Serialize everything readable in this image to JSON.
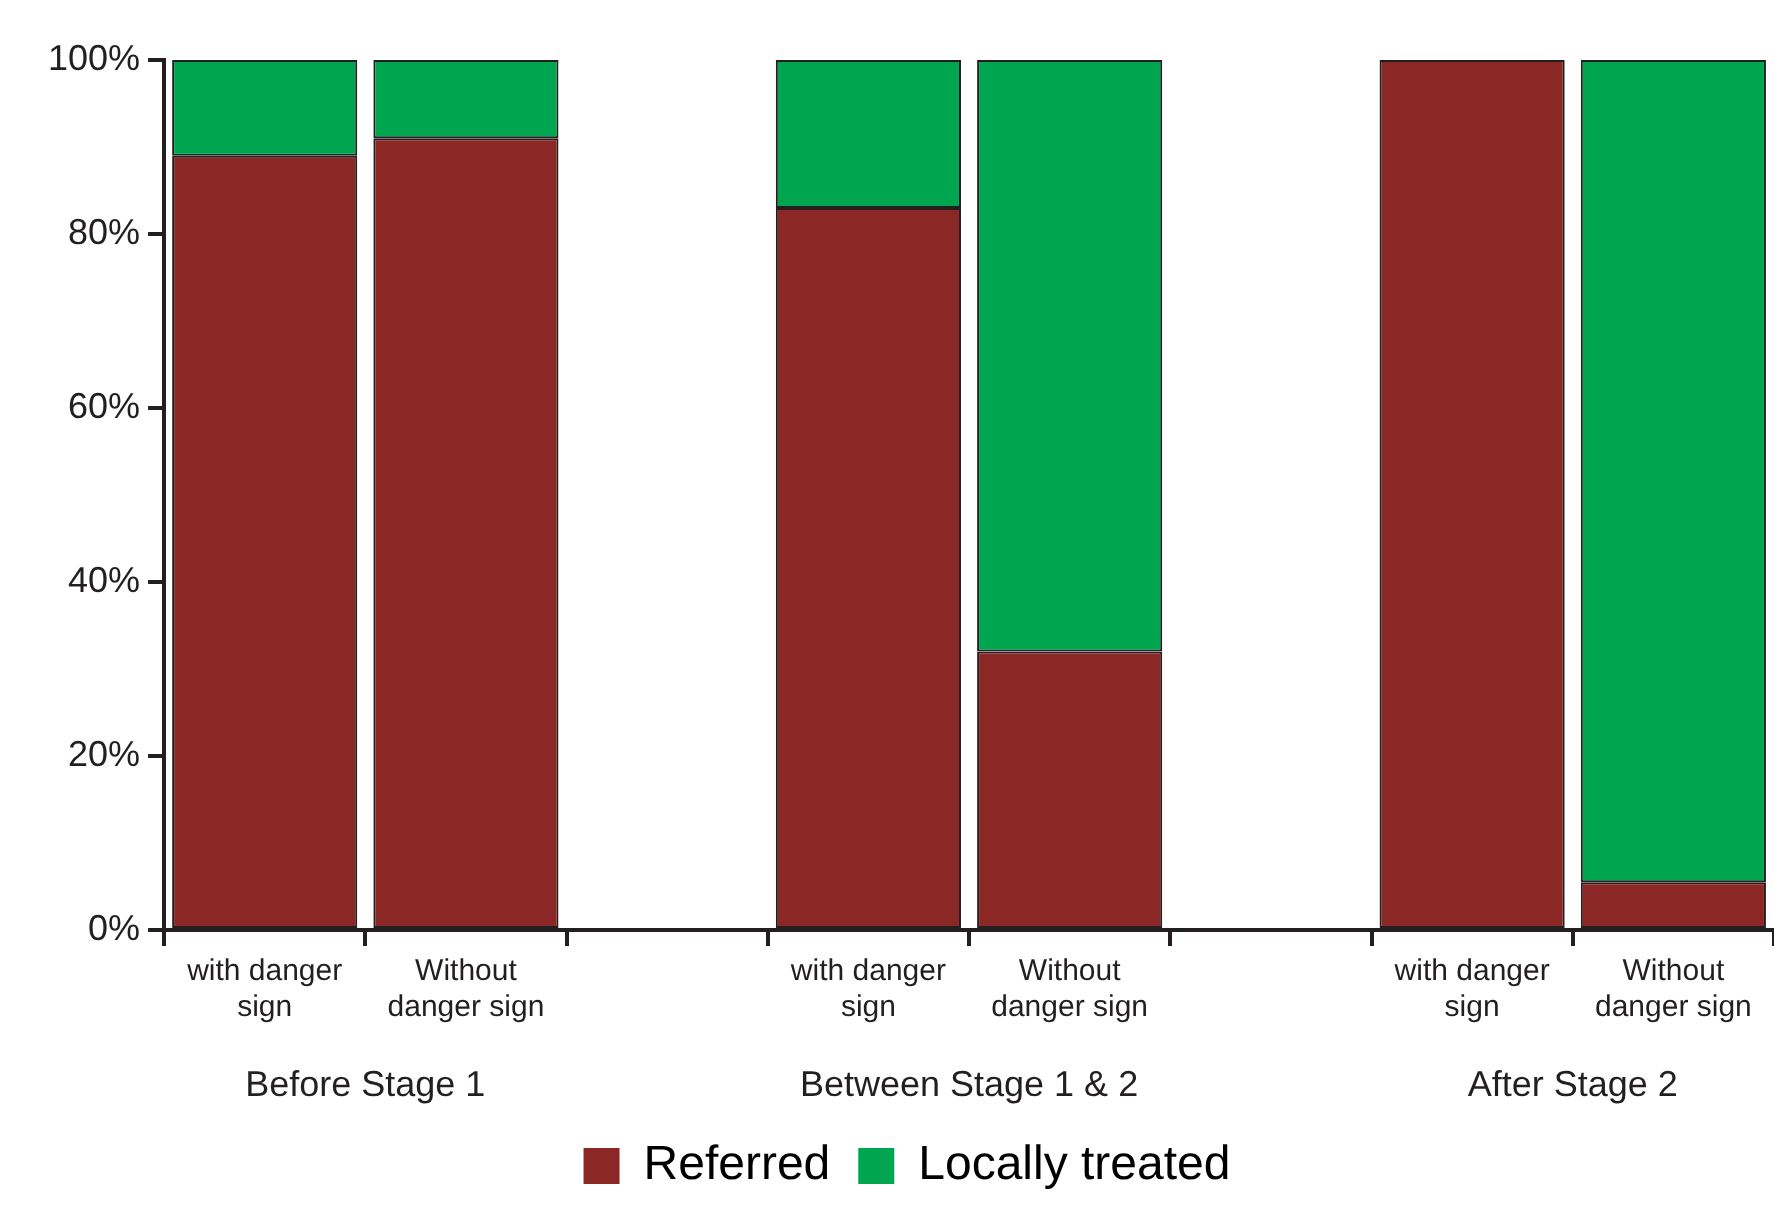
{
  "chart_data": {
    "type": "bar",
    "stacked": true,
    "categories": [
      "with danger sign",
      "Without danger sign",
      null,
      "with danger sign",
      "Without danger sign",
      null,
      "with danger sign",
      "Without danger sign"
    ],
    "series": [
      {
        "name": "Referred",
        "color": "#8b2825",
        "values": [
          89,
          91,
          null,
          83,
          32,
          null,
          100,
          5.5
        ]
      },
      {
        "name": "Locally treated",
        "color": "#00a64f",
        "values": [
          11,
          9,
          null,
          17,
          68,
          null,
          0,
          94.5
        ]
      }
    ],
    "ylim": [
      0,
      100
    ],
    "yticks": [
      {
        "value": 0,
        "label": "0%"
      },
      {
        "value": 20,
        "label": "20%"
      },
      {
        "value": 40,
        "label": "40%"
      },
      {
        "value": 60,
        "label": "60%"
      },
      {
        "value": 80,
        "label": "80%"
      },
      {
        "value": 100,
        "label": "100%"
      }
    ],
    "annotations": [
      "Before Stage 1",
      "Between Stage 1 & 2",
      "After Stage 2"
    ],
    "grid": false,
    "legend": "bottom"
  }
}
